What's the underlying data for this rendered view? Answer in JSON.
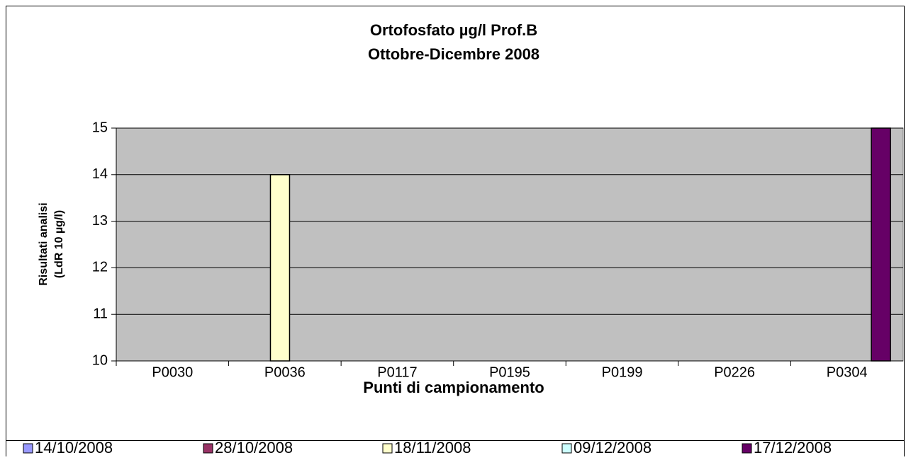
{
  "chart_data": {
    "type": "bar",
    "title": "Ortofosfato  µg/l Prof.B",
    "subtitle": "Ottobre-Dicembre 2008",
    "y_label": [
      "Risultati analisi",
      "(LdR 10 µg/l)"
    ],
    "x_label": "Punti di campionamento",
    "categories": [
      "P0030",
      "P0036",
      "P0117",
      "P0195",
      "P0199",
      "P0226",
      "P0304"
    ],
    "series": [
      {
        "name": "14/10/2008",
        "color": "#9999ff",
        "values": [
          null,
          null,
          null,
          null,
          null,
          null,
          null
        ]
      },
      {
        "name": "28/10/2008",
        "color": "#993366",
        "values": [
          null,
          null,
          null,
          null,
          null,
          null,
          null
        ]
      },
      {
        "name": "18/11/2008",
        "color": "#ffffcc",
        "values": [
          null,
          14,
          null,
          null,
          null,
          null,
          null
        ]
      },
      {
        "name": "09/12/2008",
        "color": "#ccffff",
        "values": [
          null,
          null,
          null,
          null,
          null,
          null,
          null
        ]
      },
      {
        "name": "17/12/2008",
        "color": "#660066",
        "values": [
          null,
          null,
          null,
          null,
          null,
          null,
          15
        ]
      }
    ],
    "ylim": [
      10,
      15
    ],
    "yticks": [
      10,
      11,
      12,
      13,
      14,
      15
    ],
    "grid": true,
    "plot_background": "#c0c0c0",
    "legend": "bottom"
  }
}
